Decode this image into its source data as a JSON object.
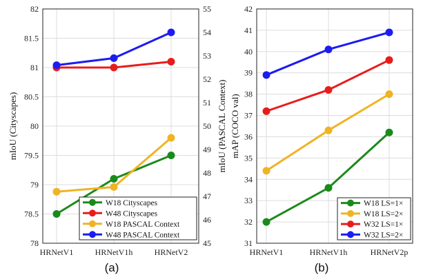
{
  "chart_data": [
    {
      "type": "line",
      "caption": "(a)",
      "categories": [
        "HRNetV1",
        "HRNetV1h",
        "HRNetV2"
      ],
      "ylabel": "mIoU (Cityscapes)",
      "ylim": [
        78,
        82
      ],
      "yticks": [
        "78",
        "78.5",
        "79",
        "79.5",
        "80",
        "80.5",
        "81",
        "81.5",
        "82"
      ],
      "y2label": "mIoU (PASCAL Context)",
      "y2lim": [
        45,
        55
      ],
      "y2ticks": [
        "45",
        "46",
        "47",
        "48",
        "49",
        "50",
        "51",
        "52",
        "53",
        "54",
        "55"
      ],
      "grid": true,
      "legend_position": "bottom-right",
      "series": [
        {
          "name": "W18 Cityscapes",
          "axis": "left",
          "color": "#1a8a1a",
          "values": [
            78.5,
            79.1,
            79.5
          ]
        },
        {
          "name": "W48 Cityscapes",
          "axis": "left",
          "color": "#e81c1c",
          "values": [
            81.0,
            81.0,
            81.1
          ]
        },
        {
          "name": "W18 PASCAL Context",
          "axis": "right",
          "color": "#f0b323",
          "values": [
            47.2,
            47.4,
            49.5
          ]
        },
        {
          "name": "W48 PASCAL Context",
          "axis": "right",
          "color": "#1c1cf0",
          "values": [
            52.6,
            52.9,
            54.0
          ]
        }
      ]
    },
    {
      "type": "line",
      "caption": "(b)",
      "categories": [
        "HRNetV1",
        "HRNetV1h",
        "HRNetV2p"
      ],
      "ylabel": "mAP (COCO val)",
      "ylim": [
        31,
        42
      ],
      "yticks": [
        "31",
        "32",
        "33",
        "34",
        "35",
        "36",
        "37",
        "38",
        "39",
        "40",
        "41",
        "42"
      ],
      "grid": true,
      "legend_position": "bottom-right",
      "series": [
        {
          "name": "W18 LS=1×",
          "color": "#1a8a1a",
          "values": [
            32.0,
            33.6,
            36.2
          ]
        },
        {
          "name": "W18 LS=2×",
          "color": "#f0b323",
          "values": [
            34.4,
            36.3,
            38.0
          ]
        },
        {
          "name": "W32 LS=1×",
          "color": "#e81c1c",
          "values": [
            37.2,
            38.2,
            39.6
          ]
        },
        {
          "name": "W32 LS=2×",
          "color": "#1c1cf0",
          "values": [
            38.9,
            40.1,
            40.9
          ]
        }
      ]
    }
  ]
}
